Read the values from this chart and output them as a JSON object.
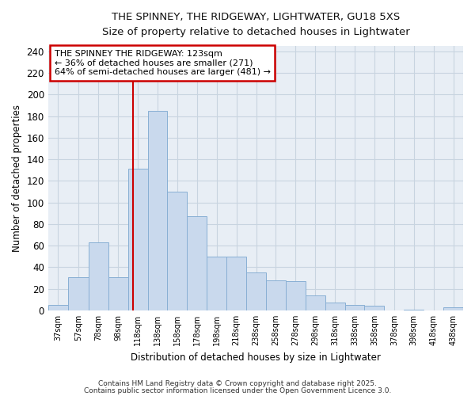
{
  "title_line1": "THE SPINNEY, THE RIDGEWAY, LIGHTWATER, GU18 5XS",
  "title_line2": "Size of property relative to detached houses in Lightwater",
  "xlabel": "Distribution of detached houses by size in Lightwater",
  "ylabel": "Number of detached properties",
  "bar_labels": [
    "37sqm",
    "57sqm",
    "78sqm",
    "98sqm",
    "118sqm",
    "138sqm",
    "158sqm",
    "178sqm",
    "198sqm",
    "218sqm",
    "238sqm",
    "258sqm",
    "278sqm",
    "298sqm",
    "318sqm",
    "338sqm",
    "358sqm",
    "378sqm",
    "398sqm",
    "418sqm",
    "438sqm"
  ],
  "bar_values": [
    5,
    31,
    63,
    31,
    131,
    185,
    110,
    87,
    50,
    50,
    35,
    28,
    27,
    14,
    7,
    5,
    4,
    0,
    1,
    0,
    3
  ],
  "bar_color": "#c9d9ed",
  "bar_edgecolor": "#88afd4",
  "vline_x": 123,
  "vline_color": "#cc0000",
  "annotation_title": "THE SPINNEY THE RIDGEWAY: 123sqm",
  "annotation_line1": "← 36% of detached houses are smaller (271)",
  "annotation_line2": "64% of semi-detached houses are larger (481) →",
  "annotation_box_edgecolor": "#cc0000",
  "annotation_box_facecolor": "#ffffff",
  "ylim": [
    0,
    245
  ],
  "ytick_max": 240,
  "ytick_step": 20,
  "background_color": "#ffffff",
  "plot_bg_color": "#e8eef5",
  "grid_color": "#c8d4e0",
  "footer_line1": "Contains HM Land Registry data © Crown copyright and database right 2025.",
  "footer_line2": "Contains public sector information licensed under the Open Government Licence 3.0.",
  "bin_edges": [
    37,
    57,
    78,
    98,
    118,
    138,
    158,
    178,
    198,
    218,
    238,
    258,
    278,
    298,
    318,
    338,
    358,
    378,
    398,
    418,
    438,
    458
  ]
}
